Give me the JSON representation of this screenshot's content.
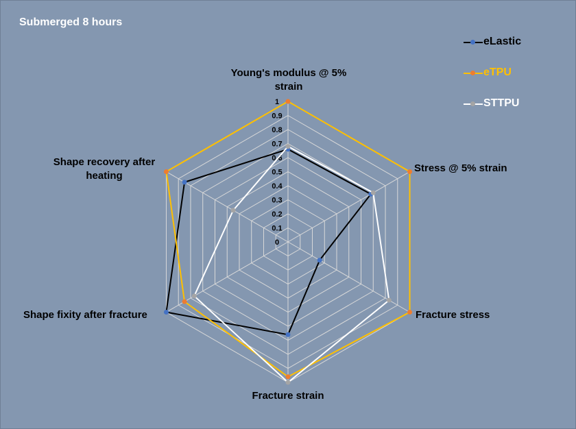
{
  "chart_data": {
    "type": "radar",
    "title": "Submerged 8 hours",
    "axes": [
      "Young's modulus @ 5% strain",
      "Stress @ 5% strain",
      "Fracture stress",
      "Fracture strain",
      "Shape fixity after fracture",
      "Shape recovery after heating"
    ],
    "ticks": [
      "0",
      "0.1",
      "0.2",
      "0.3",
      "0.4",
      "0.5",
      "0.6",
      "0.7",
      "0.8",
      "0.9",
      "1"
    ],
    "range": [
      0,
      1
    ],
    "gridlines": true,
    "legend_position": "top-right",
    "series": [
      {
        "name": "eLastic",
        "line_color": "#000000",
        "marker_color": "#4472c4",
        "values": [
          0.66,
          0.68,
          0.26,
          0.66,
          1.0,
          0.85
        ]
      },
      {
        "name": "eTPU",
        "line_color": "#ffc000",
        "marker_color": "#ed7d31",
        "values": [
          1.0,
          1.0,
          1.0,
          0.96,
          0.85,
          1.0
        ]
      },
      {
        "name": "STTPU",
        "line_color": "#ffffff",
        "marker_color": "#a5a5a5",
        "values": [
          0.68,
          0.7,
          0.83,
          1.0,
          0.77,
          0.45
        ]
      }
    ]
  }
}
